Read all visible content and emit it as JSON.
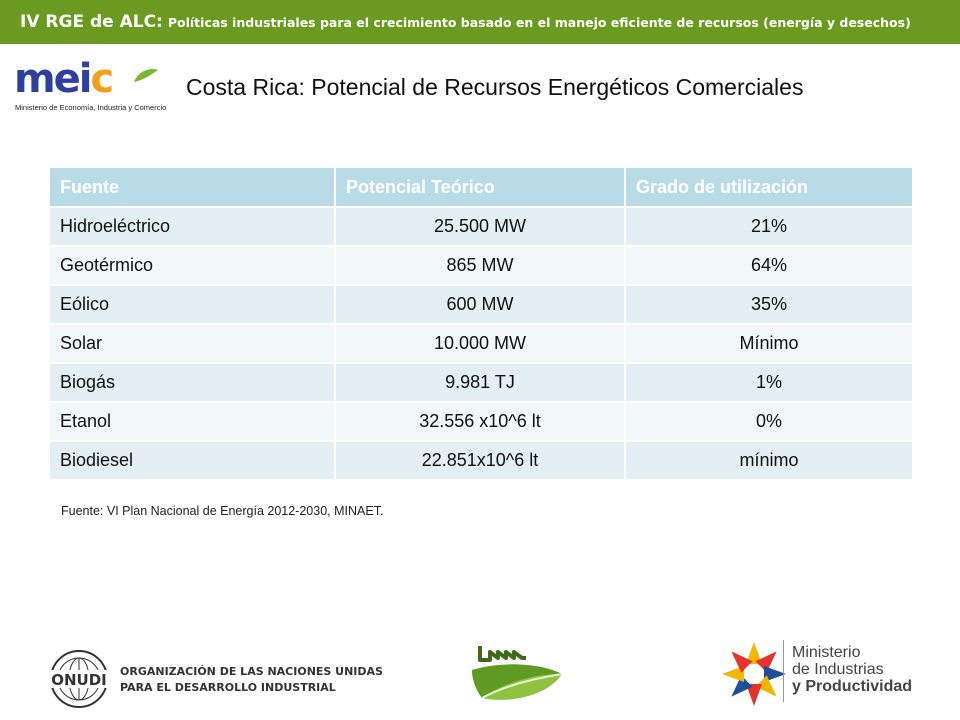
{
  "header": {
    "event": "IV RGE de ALC:",
    "subtitle": "Políticas industriales para el crecimiento basado en el manejo eficiente de recursos  (energía y desechos)"
  },
  "logos": {
    "meic": {
      "word_main": "mei",
      "word_accent": "c",
      "subtitle": "Ministerio de Economía, Industria y Comercio"
    },
    "onudi": {
      "emblem": "ONUDI",
      "line1": "ORGANIZACIÓN DE LAS NACIONES UNIDAS",
      "line2": "PARA EL DESARROLLO INDUSTRIAL"
    },
    "ministerio": {
      "line1": "Ministerio",
      "line2": "de Industrias",
      "line3": "y Productividad"
    }
  },
  "page": {
    "title": "Costa Rica: Potencial de Recursos Energéticos Comerciales"
  },
  "table": {
    "headers": [
      "Fuente",
      "Potencial Teórico",
      "Grado de utilización"
    ],
    "rows": [
      [
        "Hidroeléctrico",
        "25.500 MW",
        "21%"
      ],
      [
        "Geotérmico",
        "865 MW",
        "64%"
      ],
      [
        "Eólico",
        "600 MW",
        "35%"
      ],
      [
        "Solar",
        "10.000 MW",
        "Mínimo"
      ],
      [
        "Biogás",
        "9.981 TJ",
        "1%"
      ],
      [
        "Etanol",
        "32.556 x10^6 lt",
        "0%"
      ],
      [
        "Biodiesel",
        "22.851x10^6 lt",
        "mínimo"
      ]
    ]
  },
  "footnote": "Fuente: VI Plan Nacional de Energía 2012-2030, MINAET.",
  "colors": {
    "header_bar": "#6a9a1f",
    "table_header": "#b9dbe6",
    "row_dark": "#e4eff4",
    "row_light": "#f2f7fa",
    "meic_blue": "#2f3f9e",
    "meic_orange": "#f2a019"
  }
}
